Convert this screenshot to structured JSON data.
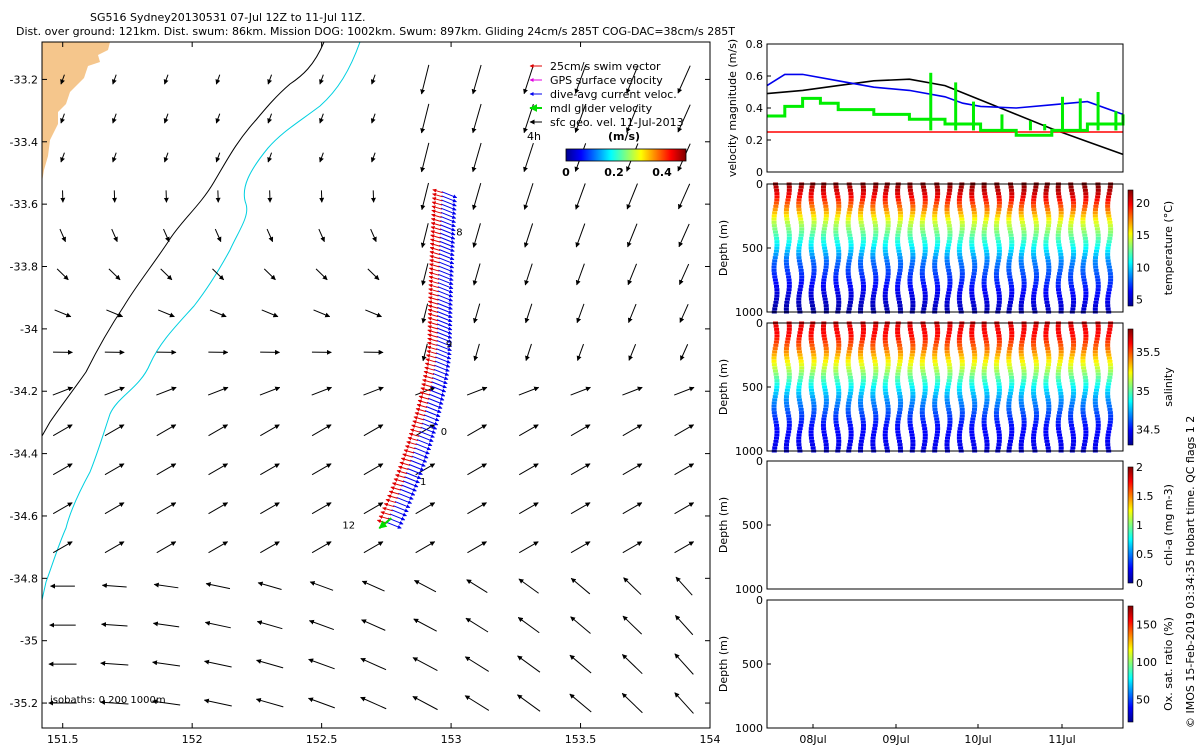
{
  "header": {
    "line1": "SG516 Sydney20130531 07-Jul 12Z to 11-Jul 11Z.",
    "line2": "Dist. over ground: 121km. Dist. swum: 86km. Mission DOG: 1002km. Swum: 897km. Gliding 24cm/s 285T COG-DAC=38cm/s 285T"
  },
  "credit": "© IMOS 15-Feb-2019 03:34:35 Hobart time. QC flags 1  2",
  "colors": {
    "swim": "#e00000",
    "gps": "#e000e0",
    "dac": "#0000ee",
    "glider": "#00dd00",
    "sfc": "#000000",
    "coast": "#00d0e0",
    "land": "#f5c68c"
  },
  "chart_data": [
    {
      "type": "map",
      "xlim": [
        151.42,
        154.0
      ],
      "ylim": [
        -35.28,
        -33.08
      ],
      "x_ticks": [
        151.5,
        152,
        152.5,
        153,
        153.5,
        154
      ],
      "x_tick_labels": [
        "151.5",
        "152",
        "152.5",
        "153",
        "153.5",
        "154"
      ],
      "y_ticks": [
        -33.2,
        -33.4,
        -33.6,
        -33.8,
        -34,
        -34.2,
        -34.4,
        -34.6,
        -34.8,
        -35,
        -35.2
      ],
      "y_tick_labels": [
        "-33.2",
        "-33.4",
        "-33.6",
        "-33.8",
        "-34",
        "-34.2",
        "-34.4",
        "-34.6",
        "-34.8",
        "-35",
        "-35.2"
      ],
      "legend": {
        "placement": "top-right",
        "items": [
          {
            "label": "25cm/s swim vector",
            "color": "#e00000"
          },
          {
            "label": "GPS surface velocity",
            "color": "#e000e0"
          },
          {
            "label": "dive-avg current veloc.",
            "color": "#0000ee"
          },
          {
            "label": "mdl glider velocity",
            "color": "#00dd00"
          },
          {
            "label": "sfc geo. vel. 11-Jul-2013",
            "color": "#000000"
          }
        ]
      },
      "colorbar": {
        "label": "(m/s)",
        "ticks": [
          "0",
          "0.2",
          "0.4"
        ],
        "range": [
          0,
          0.5
        ]
      },
      "scale_label": "4h",
      "isobaths_label": "isobaths: 0   200  1000m",
      "track_labels": [
        {
          "text": "12",
          "lon": 152.58,
          "lat": -34.64
        },
        {
          "text": "1",
          "lon": 152.88,
          "lat": -34.5
        },
        {
          "text": "0",
          "lon": 152.96,
          "lat": -34.34
        },
        {
          "text": "9",
          "lon": 152.98,
          "lat": -34.06
        },
        {
          "text": "8",
          "lon": 153.02,
          "lat": -33.7
        }
      ],
      "grid": false
    },
    {
      "type": "line",
      "ylabel": "velocity magnitude (m/s)",
      "ylim": [
        0,
        0.8
      ],
      "y_ticks": [
        0,
        0.2,
        0.4,
        0.6,
        0.8
      ],
      "y_tick_labels": [
        "0",
        "0.2",
        "0.4",
        "0.6",
        "0.8"
      ],
      "xlim": [
        0,
        1
      ],
      "series": [
        {
          "color": "#000000",
          "x": [
            0,
            0.1,
            0.2,
            0.3,
            0.4,
            0.5,
            0.6,
            0.7,
            0.8,
            0.9,
            1.0
          ],
          "values": [
            0.49,
            0.51,
            0.54,
            0.57,
            0.58,
            0.54,
            0.45,
            0.36,
            0.27,
            0.19,
            0.11
          ]
        },
        {
          "color": "#0000ee",
          "x": [
            0,
            0.05,
            0.1,
            0.2,
            0.3,
            0.4,
            0.5,
            0.55,
            0.6,
            0.7,
            0.8,
            0.9,
            1.0
          ],
          "values": [
            0.54,
            0.61,
            0.61,
            0.57,
            0.53,
            0.51,
            0.47,
            0.43,
            0.41,
            0.4,
            0.42,
            0.44,
            0.36
          ]
        },
        {
          "color": "#ff0000",
          "x": [
            0,
            1
          ],
          "values": [
            0.25,
            0.25
          ]
        },
        {
          "color": "#00ee00",
          "x": [
            0,
            0.05,
            0.1,
            0.15,
            0.2,
            0.3,
            0.4,
            0.5,
            0.6,
            0.7,
            0.8,
            0.9,
            1.0
          ],
          "values": [
            0.35,
            0.41,
            0.46,
            0.43,
            0.39,
            0.36,
            0.33,
            0.3,
            0.26,
            0.23,
            0.26,
            0.3,
            0.36
          ]
        }
      ],
      "spikes": {
        "x": [
          0.46,
          0.53,
          0.58,
          0.66,
          0.74,
          0.78,
          0.83,
          0.88,
          0.93,
          0.98
        ],
        "values": [
          0.62,
          0.56,
          0.44,
          0.36,
          0.32,
          0.3,
          0.47,
          0.46,
          0.5,
          0.38
        ]
      },
      "grid": false
    },
    {
      "type": "scatter",
      "ylabel": "Depth (m)",
      "ylim": [
        1000,
        0
      ],
      "y_ticks": [
        0,
        500,
        1000
      ],
      "y_tick_labels": [
        "0",
        "500",
        "1000"
      ],
      "colorbar": {
        "label": "temperature (°C)",
        "ticks": [
          "5",
          "10",
          "15",
          "20"
        ],
        "range": [
          4,
          22
        ]
      },
      "dives": 28,
      "profile": {
        "depth": [
          0,
          100,
          200,
          300,
          400,
          500,
          600,
          800,
          1000
        ],
        "value": [
          21.5,
          19.5,
          17,
          14,
          12,
          10,
          8,
          6,
          4.5
        ]
      }
    },
    {
      "type": "scatter",
      "ylabel": "Depth (m)",
      "ylim": [
        1000,
        0
      ],
      "y_ticks": [
        0,
        500,
        1000
      ],
      "y_tick_labels": [
        "0",
        "500",
        "1000"
      ],
      "colorbar": {
        "label": "salinity",
        "ticks": [
          "34.5",
          "35",
          "35.5"
        ],
        "range": [
          34.3,
          35.8
        ]
      },
      "dives": 28,
      "profile": {
        "depth": [
          0,
          100,
          200,
          300,
          400,
          500,
          600,
          800,
          1000
        ],
        "value": [
          35.65,
          35.6,
          35.45,
          35.25,
          35.05,
          34.85,
          34.7,
          34.5,
          34.45
        ]
      }
    },
    {
      "type": "scatter",
      "ylabel": "Depth (m)",
      "ylim": [
        1000,
        0
      ],
      "y_ticks": [
        0,
        500,
        1000
      ],
      "y_tick_labels": [
        "0",
        "500",
        "1000"
      ],
      "colorbar": {
        "label": "chl-a (mg m-3)",
        "ticks": [
          "0",
          "0.5",
          "1",
          "1.5",
          "2"
        ],
        "range": [
          0,
          2
        ]
      }
    },
    {
      "type": "scatter",
      "ylabel": "Depth (m)",
      "ylim": [
        1000,
        0
      ],
      "y_ticks": [
        0,
        500,
        1000
      ],
      "y_tick_labels": [
        "0",
        "500",
        "1000"
      ],
      "colorbar": {
        "label": "Ox. sat. ratio (%)",
        "ticks": [
          "50",
          "100",
          "150"
        ],
        "range": [
          20,
          175
        ]
      },
      "x_ticks": [
        "08Jul",
        "09Jul",
        "10Jul",
        "11Jul"
      ]
    }
  ]
}
